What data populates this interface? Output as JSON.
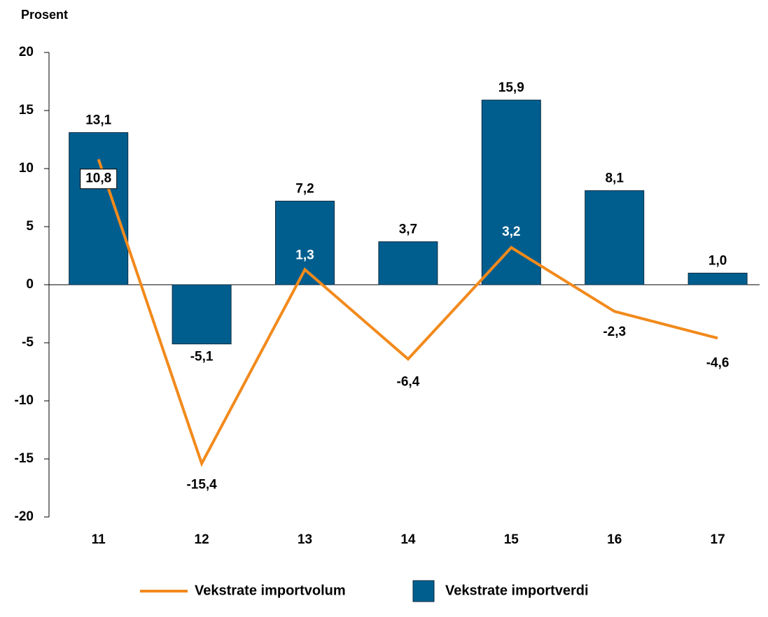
{
  "chart_data": {
    "type": "bar",
    "y_axis_label": "Prosent",
    "categories": [
      "11",
      "12",
      "13",
      "14",
      "15",
      "16",
      "17"
    ],
    "ylim": [
      -20,
      20
    ],
    "yticks": [
      -20,
      -15,
      -10,
      -5,
      0,
      5,
      10,
      15,
      20
    ],
    "legend": "bottom",
    "series": [
      {
        "name": "Vekstrate importvolum",
        "type": "line",
        "color": "#f28a1c",
        "values": [
          10.8,
          -15.4,
          1.3,
          -6.4,
          3.2,
          -2.3,
          -4.6
        ],
        "value_labels": [
          "10,8",
          "-15,4",
          "1,3",
          "-6,4",
          "3,2",
          "-2,3",
          "-4,6"
        ]
      },
      {
        "name": "Vekstrate importverdi",
        "type": "bar",
        "color": "#005e8f",
        "values": [
          13.1,
          -5.1,
          7.2,
          3.7,
          15.9,
          8.1,
          1.0
        ],
        "value_labels": [
          "13,1",
          "-5,1",
          "7,2",
          "3,7",
          "15,9",
          "8,1",
          "1,0"
        ]
      }
    ]
  }
}
